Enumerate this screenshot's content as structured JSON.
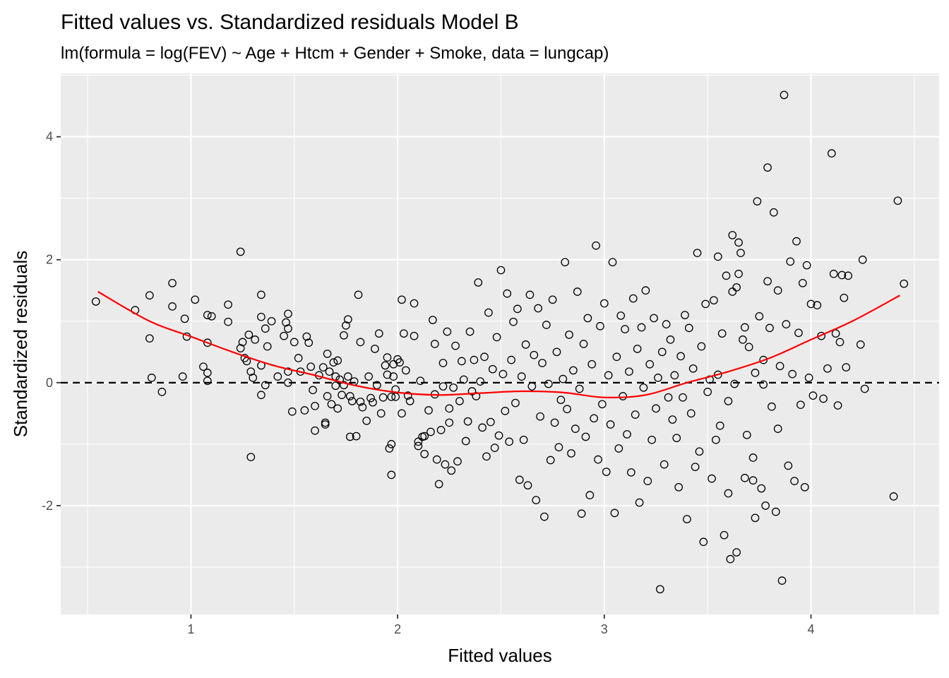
{
  "chart_data": {
    "type": "scatter",
    "title": "Fitted values vs. Standardized residuals Model B",
    "subtitle": "lm(formula = log(FEV) ~ Age + Htcm + Gender + Smoke, data = lungcap)",
    "xlabel": "Fitted values",
    "ylabel": "Standardized residuals",
    "xlim": [
      0.37,
      4.62
    ],
    "ylim": [
      -3.77,
      5.03
    ],
    "xticks": [
      1,
      2,
      3,
      4
    ],
    "yticks": [
      -2,
      0,
      2,
      4
    ],
    "grid": true,
    "reference_line": {
      "y": 0,
      "style": "dashed",
      "color": "#000000"
    },
    "background_color": "#ebebeb",
    "grid_color": "#ffffff",
    "point_color": "#000000",
    "smooth_color": "#ff0000",
    "smooth": {
      "x": [
        0.55,
        0.8,
        1.0,
        1.2,
        1.4,
        1.6,
        1.8,
        2.0,
        2.2,
        2.4,
        2.6,
        2.8,
        3.0,
        3.2,
        3.4,
        3.6,
        3.8,
        4.0,
        4.2,
        4.43
      ],
      "y": [
        1.48,
        1.0,
        0.75,
        0.5,
        0.28,
        0.12,
        -0.05,
        -0.16,
        -0.2,
        -0.17,
        -0.14,
        -0.16,
        -0.24,
        -0.2,
        0.0,
        0.18,
        0.4,
        0.7,
        1.0,
        1.42
      ]
    },
    "points": [
      [
        0.54,
        1.32
      ],
      [
        0.73,
        1.18
      ],
      [
        0.8,
        1.42
      ],
      [
        0.8,
        0.72
      ],
      [
        0.81,
        0.08
      ],
      [
        0.86,
        -0.15
      ],
      [
        0.91,
        1.62
      ],
      [
        0.91,
        1.24
      ],
      [
        0.96,
        0.1
      ],
      [
        0.97,
        1.04
      ],
      [
        0.98,
        0.75
      ],
      [
        1.02,
        1.35
      ],
      [
        1.06,
        0.26
      ],
      [
        1.08,
        1.1
      ],
      [
        1.08,
        0.65
      ],
      [
        1.08,
        0.16
      ],
      [
        1.08,
        0.03
      ],
      [
        1.1,
        1.08
      ],
      [
        1.18,
        1.27
      ],
      [
        1.18,
        0.99
      ],
      [
        1.24,
        2.13
      ],
      [
        1.24,
        0.56
      ],
      [
        1.25,
        0.66
      ],
      [
        1.26,
        0.4
      ],
      [
        1.27,
        0.35
      ],
      [
        1.28,
        0.78
      ],
      [
        1.29,
        -1.21
      ],
      [
        1.3,
        0.08
      ],
      [
        1.29,
        0.18
      ],
      [
        1.31,
        0.7
      ],
      [
        1.34,
        1.43
      ],
      [
        1.34,
        1.07
      ],
      [
        1.34,
        0.28
      ],
      [
        1.34,
        -0.2
      ],
      [
        1.36,
        0.88
      ],
      [
        1.36,
        -0.04
      ],
      [
        1.37,
        0.59
      ],
      [
        1.39,
        1.0
      ],
      [
        1.42,
        0.1
      ],
      [
        1.45,
        0.76
      ],
      [
        1.46,
        0.98
      ],
      [
        1.47,
        1.12
      ],
      [
        1.47,
        0.88
      ],
      [
        1.47,
        0.18
      ],
      [
        1.47,
        0.0
      ],
      [
        1.49,
        -0.47
      ],
      [
        1.5,
        0.66
      ],
      [
        1.52,
        0.4
      ],
      [
        1.53,
        0.18
      ],
      [
        1.55,
        -0.45
      ],
      [
        1.56,
        0.75
      ],
      [
        1.57,
        0.65
      ],
      [
        1.58,
        0.26
      ],
      [
        1.59,
        -0.12
      ],
      [
        1.6,
        -0.78
      ],
      [
        1.6,
        -0.38
      ],
      [
        1.62,
        0.12
      ],
      [
        1.64,
        0.25
      ],
      [
        1.65,
        -0.68
      ],
      [
        1.65,
        -0.65
      ],
      [
        1.66,
        0.47
      ],
      [
        1.66,
        -0.22
      ],
      [
        1.67,
        0.18
      ],
      [
        1.68,
        -0.35
      ],
      [
        1.69,
        0.33
      ],
      [
        1.7,
        0.1
      ],
      [
        1.7,
        -0.05
      ],
      [
        1.71,
        0.36
      ],
      [
        1.71,
        -0.42
      ],
      [
        1.72,
        0.05
      ],
      [
        1.73,
        -0.2
      ],
      [
        1.74,
        0.77
      ],
      [
        1.74,
        -0.04
      ],
      [
        1.75,
        0.93
      ],
      [
        1.76,
        1.03
      ],
      [
        1.76,
        0.1
      ],
      [
        1.77,
        -0.22
      ],
      [
        1.77,
        -0.88
      ],
      [
        1.78,
        -0.3
      ],
      [
        1.79,
        0.02
      ],
      [
        1.8,
        -0.87
      ],
      [
        1.81,
        1.43
      ],
      [
        1.82,
        0.66
      ],
      [
        1.82,
        -0.31
      ],
      [
        1.83,
        -0.4
      ],
      [
        1.85,
        -0.62
      ],
      [
        1.86,
        0.1
      ],
      [
        1.87,
        -0.25
      ],
      [
        1.88,
        -0.32
      ],
      [
        1.89,
        0.55
      ],
      [
        1.9,
        -0.04
      ],
      [
        1.91,
        0.8
      ],
      [
        1.92,
        -0.5
      ],
      [
        1.93,
        -0.24
      ],
      [
        1.94,
        0.28
      ],
      [
        1.95,
        0.41
      ],
      [
        1.95,
        0.13
      ],
      [
        1.96,
        -1.07
      ],
      [
        1.97,
        -1.0
      ],
      [
        1.97,
        -1.5
      ],
      [
        1.97,
        -0.23
      ],
      [
        1.98,
        0.3
      ],
      [
        1.98,
        0.1
      ],
      [
        1.99,
        -0.11
      ],
      [
        1.99,
        -0.23
      ],
      [
        2.0,
        0.38
      ],
      [
        2.01,
        0.33
      ],
      [
        2.02,
        1.35
      ],
      [
        2.02,
        -0.5
      ],
      [
        2.03,
        0.8
      ],
      [
        2.04,
        0.2
      ],
      [
        2.05,
        -0.21
      ],
      [
        2.06,
        -0.3
      ],
      [
        2.08,
        1.29
      ],
      [
        2.08,
        0.76
      ],
      [
        2.1,
        -0.96
      ],
      [
        2.1,
        -1.03
      ],
      [
        2.11,
        0.03
      ],
      [
        2.12,
        -0.88
      ],
      [
        2.13,
        -1.16
      ],
      [
        2.13,
        -0.87
      ],
      [
        2.15,
        -0.45
      ],
      [
        2.16,
        -0.8
      ],
      [
        2.17,
        1.02
      ],
      [
        2.18,
        0.63
      ],
      [
        2.18,
        -0.19
      ],
      [
        2.19,
        -1.25
      ],
      [
        2.2,
        -1.65
      ],
      [
        2.21,
        -0.77
      ],
      [
        2.22,
        0.32
      ],
      [
        2.22,
        -0.06
      ],
      [
        2.23,
        -1.33
      ],
      [
        2.24,
        0.83
      ],
      [
        2.25,
        -0.42
      ],
      [
        2.25,
        -0.65
      ],
      [
        2.26,
        -1.43
      ],
      [
        2.27,
        -0.08
      ],
      [
        2.28,
        0.6
      ],
      [
        2.29,
        -1.28
      ],
      [
        2.3,
        -0.3
      ],
      [
        2.31,
        0.35
      ],
      [
        2.32,
        0.05
      ],
      [
        2.33,
        -0.95
      ],
      [
        2.34,
        -0.63
      ],
      [
        2.35,
        0.83
      ],
      [
        2.36,
        -0.14
      ],
      [
        2.37,
        0.37
      ],
      [
        2.38,
        -0.22
      ],
      [
        2.39,
        1.63
      ],
      [
        2.4,
        0.02
      ],
      [
        2.41,
        -0.73
      ],
      [
        2.42,
        0.42
      ],
      [
        2.43,
        -1.2
      ],
      [
        2.44,
        1.14
      ],
      [
        2.45,
        -0.64
      ],
      [
        2.46,
        0.22
      ],
      [
        2.47,
        -1.06
      ],
      [
        2.48,
        0.74
      ],
      [
        2.49,
        -0.86
      ],
      [
        2.5,
        1.83
      ],
      [
        2.51,
        0.14
      ],
      [
        2.52,
        -0.46
      ],
      [
        2.53,
        1.45
      ],
      [
        2.54,
        -0.96
      ],
      [
        2.55,
        0.37
      ],
      [
        2.56,
        0.99
      ],
      [
        2.57,
        -0.33
      ],
      [
        2.58,
        1.2
      ],
      [
        2.59,
        -1.58
      ],
      [
        2.6,
        0.1
      ],
      [
        2.61,
        -0.93
      ],
      [
        2.62,
        0.62
      ],
      [
        2.63,
        -1.67
      ],
      [
        2.64,
        1.43
      ],
      [
        2.65,
        -0.06
      ],
      [
        2.66,
        0.45
      ],
      [
        2.67,
        -1.91
      ],
      [
        2.68,
        1.21
      ],
      [
        2.69,
        -0.55
      ],
      [
        2.7,
        0.32
      ],
      [
        2.71,
        -2.18
      ],
      [
        2.72,
        0.94
      ],
      [
        2.73,
        -0.02
      ],
      [
        2.74,
        -1.26
      ],
      [
        2.75,
        1.35
      ],
      [
        2.76,
        -0.65
      ],
      [
        2.77,
        0.5
      ],
      [
        2.78,
        -1.05
      ],
      [
        2.79,
        -0.28
      ],
      [
        2.8,
        0.06
      ],
      [
        2.81,
        1.96
      ],
      [
        2.82,
        -0.43
      ],
      [
        2.83,
        0.78
      ],
      [
        2.84,
        -1.15
      ],
      [
        2.85,
        0.2
      ],
      [
        2.86,
        -0.75
      ],
      [
        2.87,
        1.48
      ],
      [
        2.88,
        -0.1
      ],
      [
        2.89,
        -2.13
      ],
      [
        2.9,
        0.63
      ],
      [
        2.91,
        -0.88
      ],
      [
        2.92,
        1.05
      ],
      [
        2.93,
        -1.83
      ],
      [
        2.94,
        0.3
      ],
      [
        2.95,
        -0.58
      ],
      [
        2.96,
        2.23
      ],
      [
        2.97,
        -1.25
      ],
      [
        2.98,
        0.92
      ],
      [
        2.99,
        -0.35
      ],
      [
        3.0,
        1.29
      ],
      [
        3.01,
        -1.45
      ],
      [
        3.02,
        0.12
      ],
      [
        3.03,
        -0.68
      ],
      [
        3.04,
        1.96
      ],
      [
        3.05,
        -2.12
      ],
      [
        3.06,
        0.42
      ],
      [
        3.07,
        -1.07
      ],
      [
        3.08,
        1.09
      ],
      [
        3.09,
        -0.22
      ],
      [
        3.1,
        0.87
      ],
      [
        3.11,
        -0.84
      ],
      [
        3.12,
        0.18
      ],
      [
        3.13,
        -1.46
      ],
      [
        3.14,
        1.37
      ],
      [
        3.15,
        -0.52
      ],
      [
        3.16,
        0.55
      ],
      [
        3.17,
        -1.95
      ],
      [
        3.18,
        0.9
      ],
      [
        3.19,
        -0.08
      ],
      [
        3.2,
        1.5
      ],
      [
        3.21,
        -1.6
      ],
      [
        3.22,
        0.3
      ],
      [
        3.23,
        -0.93
      ],
      [
        3.24,
        1.05
      ],
      [
        3.25,
        -0.42
      ],
      [
        3.26,
        0.08
      ],
      [
        3.27,
        -3.36
      ],
      [
        3.28,
        0.5
      ],
      [
        3.29,
        -1.33
      ],
      [
        3.3,
        0.95
      ],
      [
        3.31,
        -0.24
      ],
      [
        3.32,
        0.7
      ],
      [
        3.33,
        -0.6
      ],
      [
        3.34,
        0.12
      ],
      [
        3.35,
        -0.9
      ],
      [
        3.36,
        -1.7
      ],
      [
        3.37,
        0.43
      ],
      [
        3.38,
        -0.24
      ],
      [
        3.39,
        1.1
      ],
      [
        3.4,
        -2.22
      ],
      [
        3.41,
        0.89
      ],
      [
        3.42,
        -0.5
      ],
      [
        3.43,
        0.23
      ],
      [
        3.44,
        -1.37
      ],
      [
        3.45,
        2.11
      ],
      [
        3.46,
        -1.12
      ],
      [
        3.47,
        0.59
      ],
      [
        3.48,
        -2.59
      ],
      [
        3.49,
        1.28
      ],
      [
        3.5,
        -0.15
      ],
      [
        3.51,
        0.05
      ],
      [
        3.52,
        -1.56
      ],
      [
        3.53,
        1.34
      ],
      [
        3.54,
        -0.93
      ],
      [
        3.55,
        0.13
      ],
      [
        3.56,
        -0.7
      ],
      [
        3.57,
        0.8
      ],
      [
        3.58,
        -2.48
      ],
      [
        3.59,
        1.74
      ],
      [
        3.6,
        -0.3
      ],
      [
        3.61,
        -2.87
      ],
      [
        3.62,
        1.48
      ],
      [
        3.63,
        -0.02
      ],
      [
        3.64,
        -2.76
      ],
      [
        3.65,
        1.77
      ],
      [
        3.66,
        2.11
      ],
      [
        3.67,
        0.7
      ],
      [
        3.68,
        0.9
      ],
      [
        3.69,
        -0.85
      ],
      [
        3.7,
        0.58
      ],
      [
        3.72,
        -1.22
      ],
      [
        3.73,
        0.16
      ],
      [
        3.74,
        2.95
      ],
      [
        3.75,
        1.08
      ],
      [
        3.76,
        -1.72
      ],
      [
        3.77,
        0.37
      ],
      [
        3.78,
        -2.0
      ],
      [
        3.79,
        1.65
      ],
      [
        3.8,
        0.89
      ],
      [
        3.81,
        -0.39
      ],
      [
        3.82,
        2.77
      ],
      [
        3.83,
        -2.1
      ],
      [
        3.84,
        1.5
      ],
      [
        3.85,
        0.27
      ],
      [
        3.86,
        -3.22
      ],
      [
        3.87,
        4.68
      ],
      [
        3.88,
        0.95
      ],
      [
        3.89,
        -1.35
      ],
      [
        3.9,
        1.97
      ],
      [
        3.91,
        0.14
      ],
      [
        3.92,
        -1.6
      ],
      [
        3.93,
        2.3
      ],
      [
        3.94,
        0.81
      ],
      [
        3.95,
        -0.36
      ],
      [
        3.96,
        1.62
      ],
      [
        3.97,
        -1.7
      ],
      [
        3.98,
        1.91
      ],
      [
        3.99,
        0.08
      ],
      [
        4.0,
        1.28
      ],
      [
        4.01,
        -0.21
      ],
      [
        4.03,
        1.26
      ],
      [
        4.05,
        0.76
      ],
      [
        4.06,
        -0.26
      ],
      [
        4.08,
        0.23
      ],
      [
        4.1,
        3.73
      ],
      [
        4.11,
        1.77
      ],
      [
        4.12,
        0.8
      ],
      [
        4.13,
        -0.37
      ],
      [
        4.14,
        0.66
      ],
      [
        4.15,
        1.75
      ],
      [
        4.16,
        1.38
      ],
      [
        4.17,
        0.25
      ],
      [
        4.18,
        1.74
      ],
      [
        4.24,
        0.62
      ],
      [
        4.25,
        2.0
      ],
      [
        4.26,
        -0.1
      ],
      [
        4.4,
        -1.85
      ],
      [
        4.42,
        2.96
      ],
      [
        4.45,
        1.61
      ],
      [
        3.72,
        -1.59
      ],
      [
        3.62,
        2.4
      ],
      [
        3.65,
        2.28
      ],
      [
        3.79,
        3.5
      ],
      [
        3.77,
        -0.03
      ],
      [
        3.73,
        -2.2
      ],
      [
        3.6,
        -1.8
      ],
      [
        3.55,
        2.05
      ],
      [
        3.68,
        -1.55
      ],
      [
        3.84,
        -0.75
      ],
      [
        3.64,
        1.55
      ]
    ]
  }
}
